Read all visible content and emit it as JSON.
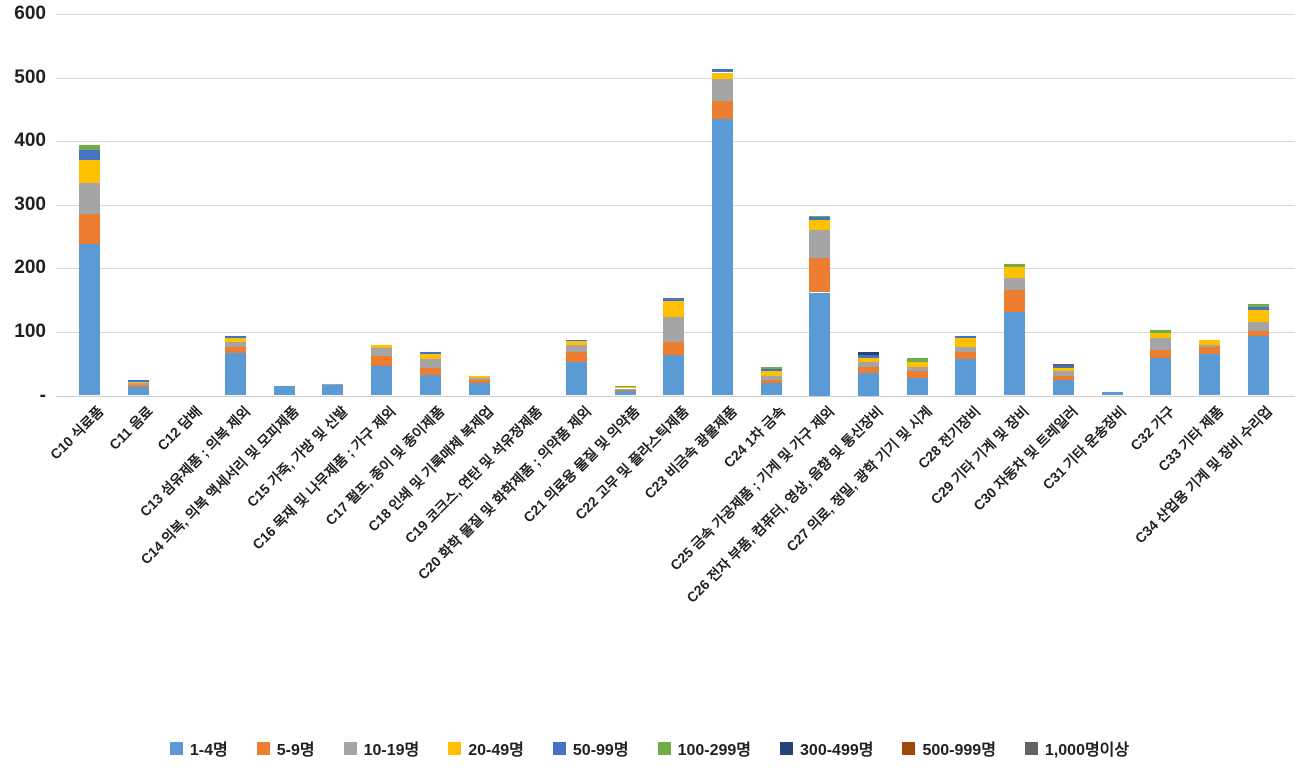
{
  "chart_data": {
    "type": "bar",
    "variant": "stacked-vertical",
    "title": "",
    "categories": [
      "C10 식료품",
      "C11 음료",
      "C12 담배",
      "C13 섬유제품 ; 의복 제외",
      "C14 의복, 의복 액세서리 및 모피제품",
      "C15 가죽, 가방 및 신발",
      "C16 목재 및 나무제품 ; 가구 제외",
      "C17 펄프, 종이 및 종이제품",
      "C18 인쇄 및 기록매체 복제업",
      "C19 코크스, 연탄 및 석유정제품",
      "C20 화학 물질 및 화학제품 ; 의약품 제외",
      "C21 의료용 물질 및 의약품",
      "C22 고무 및 플라스틱제품",
      "C23 비금속 광물제품",
      "C24 1차 금속",
      "C25 금속 가공제품 ; 기계 및 가구 제외",
      "C26 전자 부품, 컴퓨터, 영상, 음향 및 통신장비",
      "C27 의료, 정밀, 광학 기기 및 시계",
      "C28 전기장비",
      "C29 기타 기계 및 장비",
      "C30 자동차 및 트레일러",
      "C31 기타 운송장비",
      "C32 가구",
      "C33 기타 제품",
      "C34 산업용 기계 및 장비 수리업"
    ],
    "series": [
      {
        "name": "1-4명",
        "color": "#5B9BD5",
        "values": [
          239,
          13,
          0,
          67,
          15,
          16,
          47,
          33,
          20,
          0,
          53,
          7,
          64,
          435,
          20,
          162,
          35,
          28,
          58,
          131,
          25,
          5,
          59,
          66,
          94
        ]
      },
      {
        "name": "5-9명",
        "color": "#ED7D31",
        "values": [
          47,
          4,
          0,
          9,
          0,
          0,
          15,
          11,
          4,
          0,
          16,
          2,
          20,
          28,
          5,
          54,
          10,
          11,
          11,
          35,
          5,
          0,
          13,
          10,
          8
        ]
      },
      {
        "name": "10-19명",
        "color": "#A5A5A5",
        "values": [
          48,
          2,
          0,
          8,
          0,
          2,
          12,
          14,
          3,
          0,
          11,
          2,
          39,
          34,
          6,
          44,
          7,
          6,
          8,
          19,
          8,
          0,
          19,
          4,
          13
        ]
      },
      {
        "name": "20-49명",
        "color": "#FFC000",
        "values": [
          36,
          3,
          0,
          7,
          0,
          0,
          6,
          7,
          3,
          0,
          5,
          2,
          26,
          11,
          7,
          16,
          7,
          7,
          13,
          17,
          5,
          0,
          8,
          7,
          19
        ]
      },
      {
        "name": "50-99명",
        "color": "#4472C4",
        "values": [
          16,
          2,
          0,
          2,
          0,
          0,
          0,
          3,
          0,
          0,
          3,
          0,
          4,
          5,
          4,
          4,
          5,
          0,
          4,
          0,
          3,
          0,
          0,
          0,
          5
        ]
      },
      {
        "name": "100-299명",
        "color": "#70AD47",
        "values": [
          8,
          0,
          0,
          0,
          0,
          0,
          0,
          0,
          0,
          0,
          0,
          2,
          0,
          0,
          3,
          3,
          0,
          7,
          0,
          5,
          0,
          0,
          4,
          0,
          5
        ]
      },
      {
        "name": "300-499명",
        "color": "#264478",
        "values": [
          0,
          0,
          0,
          0,
          0,
          0,
          0,
          0,
          0,
          0,
          0,
          0,
          0,
          0,
          0,
          0,
          4,
          0,
          0,
          0,
          0,
          0,
          0,
          0,
          0
        ]
      },
      {
        "name": "500-999명",
        "color": "#9E480E",
        "values": [
          0,
          0,
          0,
          0,
          0,
          0,
          0,
          0,
          0,
          0,
          0,
          0,
          0,
          0,
          0,
          0,
          0,
          0,
          0,
          0,
          0,
          0,
          0,
          0,
          0
        ]
      },
      {
        "name": "1,000명이상",
        "color": "#636363",
        "values": [
          0,
          0,
          0,
          0,
          0,
          0,
          0,
          0,
          0,
          0,
          0,
          0,
          0,
          0,
          0,
          0,
          0,
          0,
          0,
          0,
          4,
          0,
          0,
          0,
          0
        ]
      }
    ],
    "y_axis": {
      "min": 0,
      "max": 600,
      "tick_interval": 100,
      "tick_labels": [
        "600",
        "500",
        "400",
        "300",
        "200",
        "100",
        "-"
      ]
    },
    "x_axis": {
      "label_rotation_deg": 45
    },
    "grid": "horizontal",
    "gridline_color": "#D9D9D9",
    "text_color": "#1F1F1F",
    "legend_position": "bottom"
  }
}
